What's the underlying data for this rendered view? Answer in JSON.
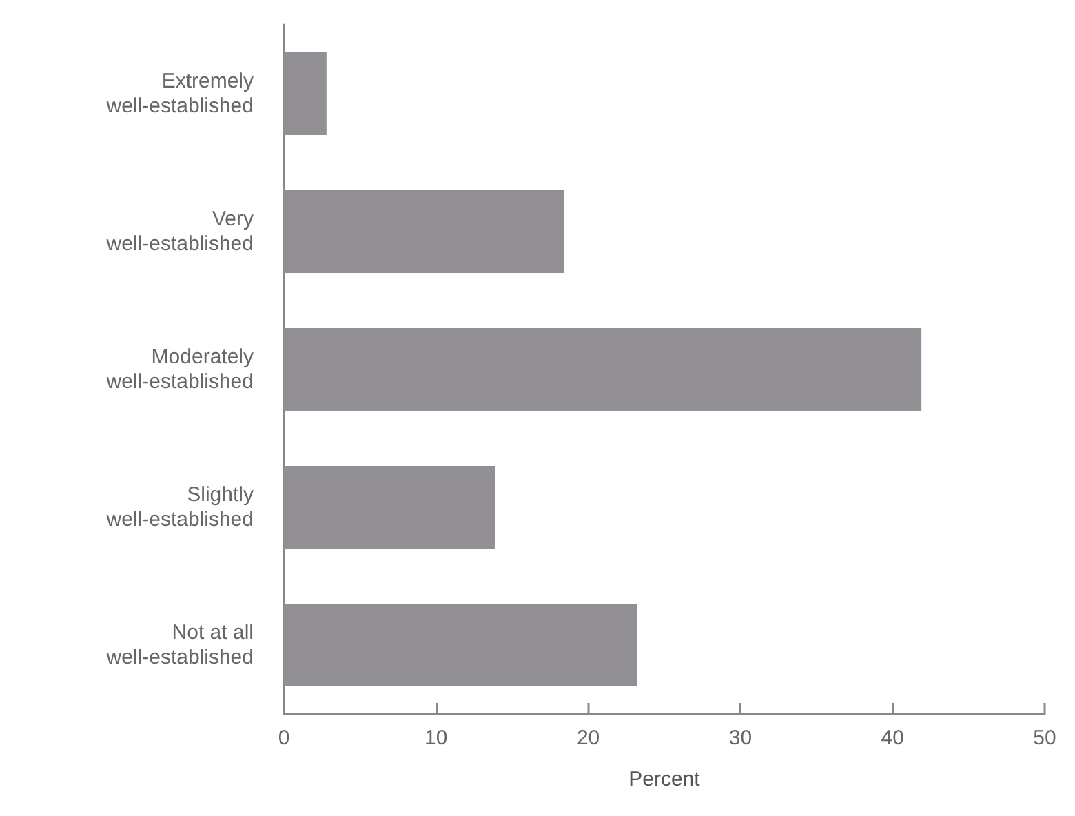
{
  "chart_data": {
    "type": "bar",
    "orientation": "horizontal",
    "xlabel": "Percent",
    "categories": [
      "Extremely\nwell-established",
      "Very\nwell-established",
      "Moderately\nwell-established",
      "Slightly\nwell-established",
      "Not at all\nwell-established"
    ],
    "values": [
      2.8,
      18.4,
      41.9,
      13.9,
      23.2
    ],
    "color": "#929095",
    "xlim": [
      0,
      50
    ],
    "xticks": [
      0,
      10,
      20,
      30,
      40,
      50
    ],
    "grid": false
  }
}
